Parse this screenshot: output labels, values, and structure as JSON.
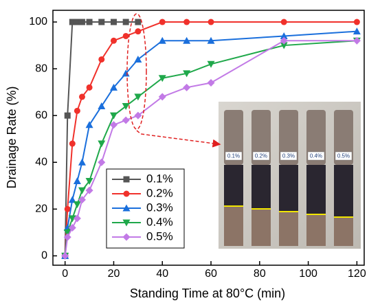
{
  "chart_data": {
    "type": "line",
    "x_label": "Standing Time at 80°C (min)",
    "y_label": "Drainage Rate (%)",
    "xlim": [
      -5,
      123
    ],
    "ylim": [
      -4,
      105
    ],
    "xticks": [
      0,
      20,
      40,
      60,
      80,
      100,
      120
    ],
    "yticks": [
      0,
      20,
      40,
      60,
      80,
      100
    ],
    "legend_loc": "lower left",
    "series": [
      {
        "name": "0.1%",
        "color": "#555555",
        "marker": "square",
        "x": [
          0,
          1,
          3,
          5,
          7,
          10,
          15,
          20,
          25,
          30
        ],
        "values": [
          0,
          60,
          100,
          100,
          100,
          100,
          100,
          100,
          100,
          100
        ]
      },
      {
        "name": "0.2%",
        "color": "#f0312b",
        "marker": "circle",
        "x": [
          0,
          1,
          3,
          5,
          7,
          10,
          15,
          20,
          25,
          30,
          40,
          50,
          60,
          90,
          120
        ],
        "values": [
          0,
          20,
          48,
          62,
          68,
          72,
          84,
          92,
          94,
          96,
          100,
          100,
          100,
          100,
          100
        ]
      },
      {
        "name": "0.3%",
        "color": "#1a6fdc",
        "marker": "triangle-up",
        "x": [
          0,
          1,
          3,
          5,
          7,
          10,
          15,
          20,
          25,
          30,
          40,
          50,
          60,
          90,
          120
        ],
        "values": [
          0,
          12,
          24,
          32,
          40,
          56,
          64,
          72,
          78,
          84,
          92,
          92,
          92,
          94,
          96
        ]
      },
      {
        "name": "0.4%",
        "color": "#1fa84a",
        "marker": "triangle-down",
        "x": [
          0,
          1,
          3,
          5,
          7,
          10,
          15,
          20,
          25,
          30,
          40,
          50,
          60,
          90,
          120
        ],
        "values": [
          0,
          10,
          16,
          22,
          28,
          32,
          48,
          60,
          64,
          68,
          76,
          78,
          82,
          90,
          92
        ]
      },
      {
        "name": "0.5%",
        "color": "#c27ae6",
        "marker": "diamond",
        "x": [
          0,
          1,
          3,
          5,
          7,
          10,
          15,
          20,
          25,
          30,
          40,
          50,
          60,
          90,
          120
        ],
        "values": [
          0,
          8,
          12,
          16,
          24,
          28,
          40,
          56,
          58,
          60,
          68,
          72,
          74,
          92,
          92
        ]
      }
    ],
    "inset_labels": [
      "0.1%",
      "0.2%",
      "0.3%",
      "0.4%",
      "0.5%"
    ]
  }
}
